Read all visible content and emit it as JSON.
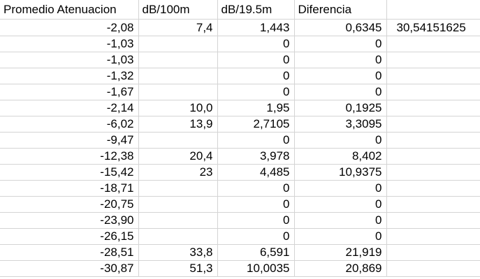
{
  "headers": [
    "Promedio Atenuacion",
    "dB/100m",
    "dB/19.5m",
    "Diferencia",
    ""
  ],
  "rows": [
    [
      "-2,08",
      "7,4",
      "1,443",
      "0,6345",
      "30,54151625"
    ],
    [
      "-1,03",
      "",
      "0",
      "0",
      ""
    ],
    [
      "-1,03",
      "",
      "0",
      "0",
      ""
    ],
    [
      "-1,32",
      "",
      "0",
      "0",
      ""
    ],
    [
      "-1,67",
      "",
      "0",
      "0",
      ""
    ],
    [
      "-2,14",
      "10,0",
      "1,95",
      "0,1925",
      ""
    ],
    [
      "-6,02",
      "13,9",
      "2,7105",
      "3,3095",
      ""
    ],
    [
      "-9,47",
      "",
      "0",
      "0",
      ""
    ],
    [
      "-12,38",
      "20,4",
      "3,978",
      "8,402",
      ""
    ],
    [
      "-15,42",
      "23",
      "4,485",
      "10,9375",
      ""
    ],
    [
      "-18,71",
      "",
      "0",
      "0",
      ""
    ],
    [
      "-20,75",
      "",
      "0",
      "0",
      ""
    ],
    [
      "-23,90",
      "",
      "0",
      "0",
      ""
    ],
    [
      "-26,15",
      "",
      "0",
      "0",
      ""
    ],
    [
      "-28,51",
      "33,8",
      "6,591",
      "21,919",
      ""
    ],
    [
      "-30,87",
      "51,3",
      "10,0035",
      "20,869",
      ""
    ]
  ]
}
